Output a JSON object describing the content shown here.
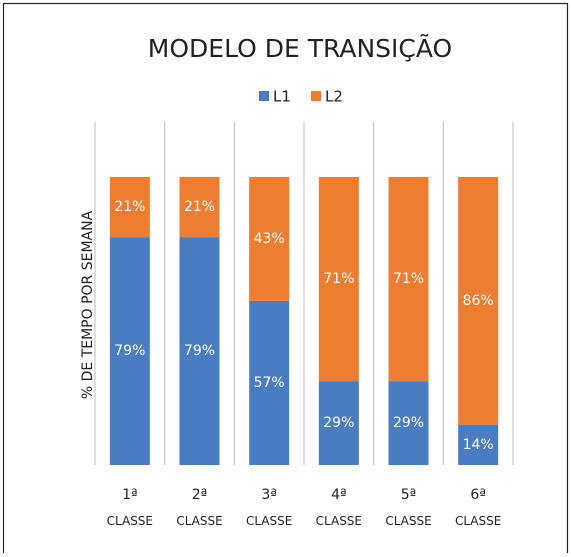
{
  "chart_data": {
    "type": "stacked_bar",
    "title": "MODELO DE TRANSIÇÃO",
    "y_label": "% DE TEMPO POR SEMANA",
    "categories": [
      "1ª CLASSE",
      "2ª CLASSE",
      "3ª CLASSE",
      "4ª CLASSE",
      "5ª CLASSE",
      "6ª CLASSE"
    ],
    "series": [
      {
        "name": "L1",
        "color": "#4a7cc1",
        "values": [
          79,
          79,
          57,
          29,
          29,
          14
        ],
        "value_labels": [
          "79%",
          "79%",
          "57%",
          "29%",
          "29%",
          "14%"
        ]
      },
      {
        "name": "L2",
        "color": "#ed7d31",
        "values": [
          21,
          21,
          43,
          71,
          71,
          86
        ],
        "value_labels": [
          "21%",
          "21%",
          "43%",
          "71%",
          "71%",
          "86%"
        ]
      }
    ],
    "ylim": [
      0,
      100
    ],
    "legend": "top"
  }
}
